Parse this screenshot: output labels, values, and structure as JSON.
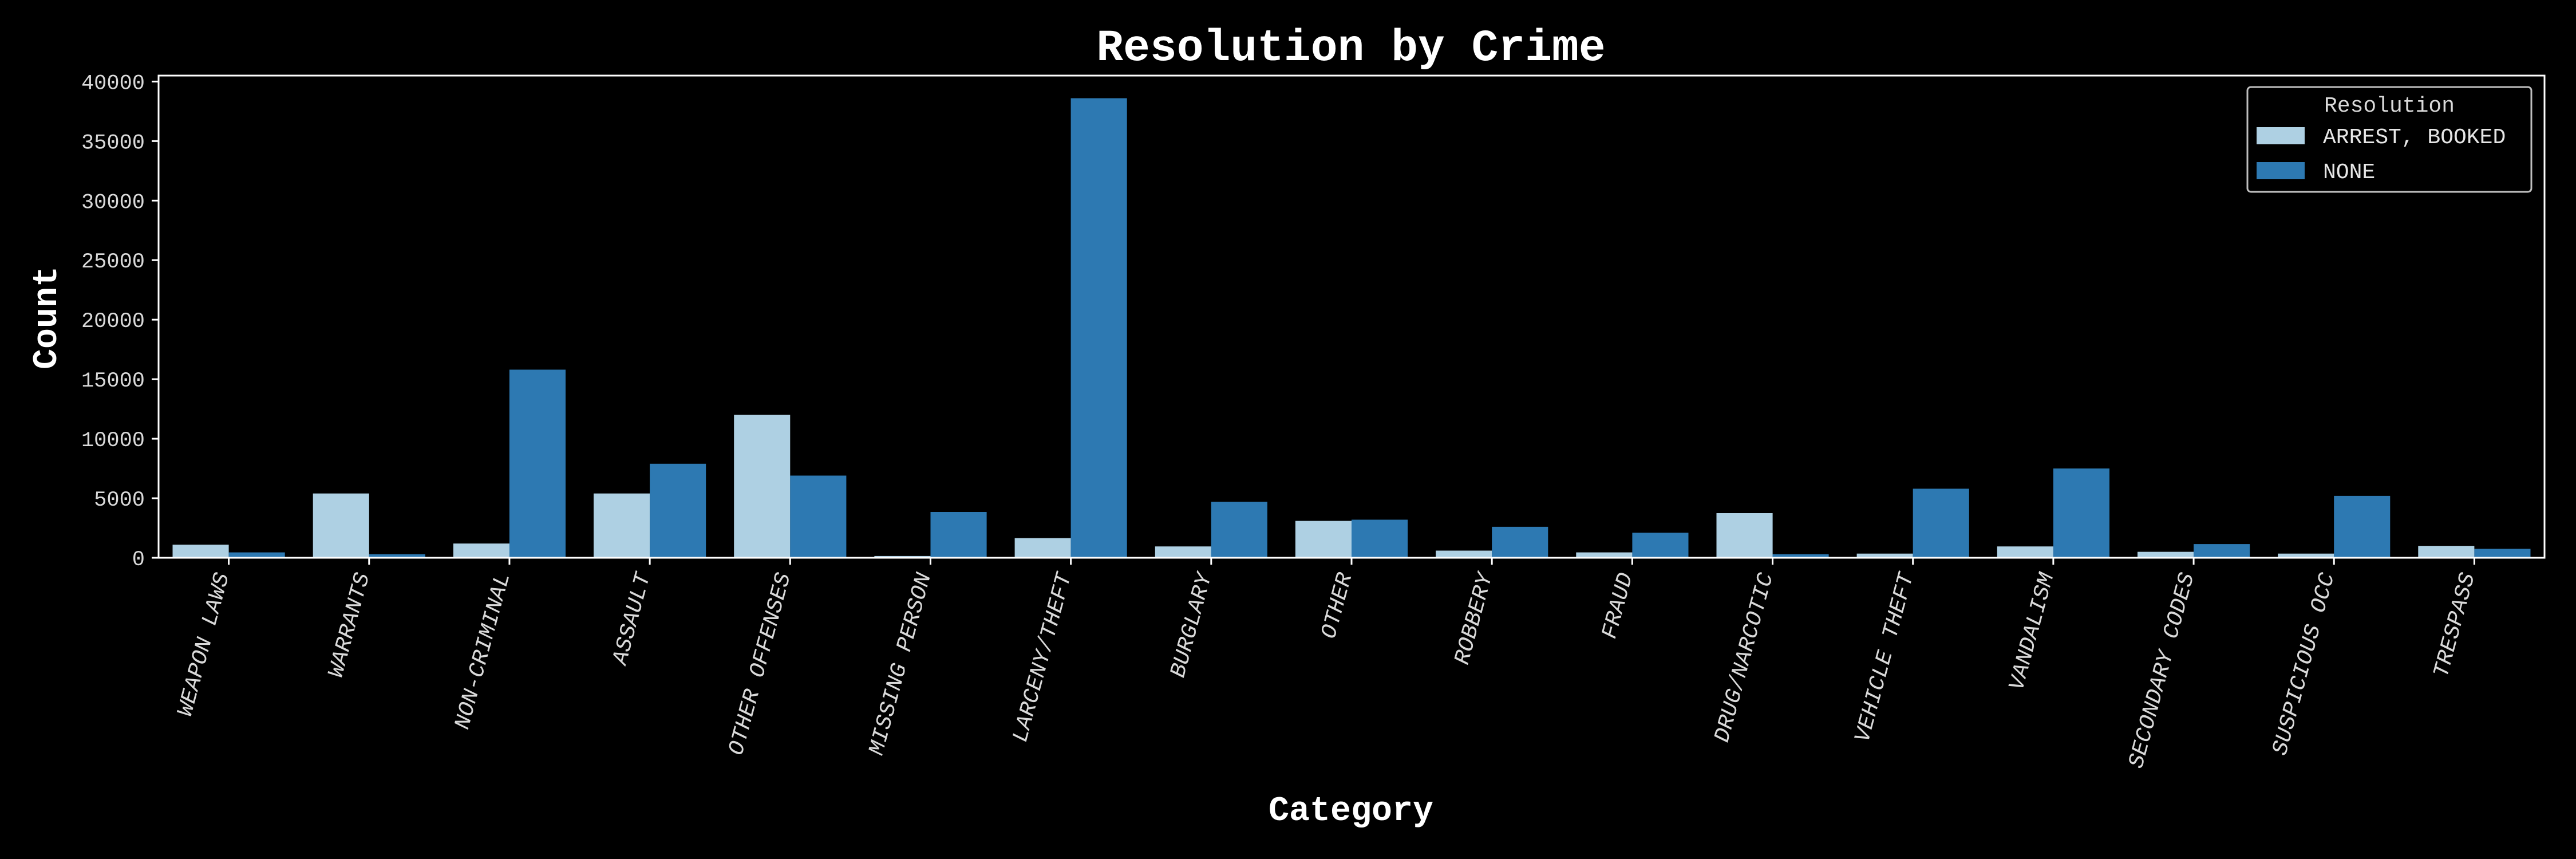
{
  "chart_data": {
    "type": "bar",
    "title": "Resolution by Crime",
    "xlabel": "Category",
    "ylabel": "Count",
    "ylim": [
      0,
      40500
    ],
    "yticks": [
      0,
      5000,
      10000,
      15000,
      20000,
      25000,
      30000,
      35000,
      40000
    ],
    "grid": false,
    "legend": {
      "title": "Resolution",
      "placement": "top-right"
    },
    "categories": [
      "WEAPON LAWS",
      "WARRANTS",
      "NON-CRIMINAL",
      "ASSAULT",
      "OTHER OFFENSES",
      "MISSING PERSON",
      "LARCENY/THEFT",
      "BURGLARY",
      "OTHER",
      "ROBBERY",
      "FRAUD",
      "DRUG/NARCOTIC",
      "VEHICLE THEFT",
      "VANDALISM",
      "SECONDARY CODES",
      "SUSPICIOUS OCC",
      "TRESPASS"
    ],
    "series": [
      {
        "name": "ARREST, BOOKED",
        "color": "#aed0e3",
        "values": [
          1100,
          5400,
          1200,
          5400,
          12000,
          150,
          1650,
          950,
          3100,
          600,
          450,
          3750,
          350,
          950,
          500,
          350,
          1000
        ]
      },
      {
        "name": "NONE",
        "color": "#2d79b2",
        "values": [
          450,
          300,
          15800,
          7900,
          6900,
          3850,
          38600,
          4700,
          3200,
          2600,
          2100,
          300,
          5800,
          7500,
          1150,
          5200,
          750
        ]
      }
    ]
  }
}
